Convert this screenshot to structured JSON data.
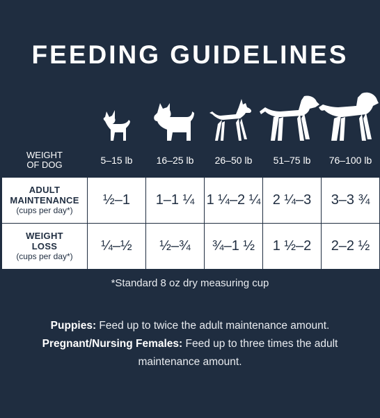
{
  "title": "FEEDING GUIDELINES",
  "dog_icons": [
    "chihuahua-icon",
    "terrier-icon",
    "doberman-icon",
    "labrador-icon",
    "golden-retriever-icon"
  ],
  "table": {
    "header_label_line1": "WEIGHT",
    "header_label_line2": "OF DOG",
    "weights": [
      "5–15 lb",
      "16–25 lb",
      "26–50 lb",
      "51–75 lb",
      "76–100 lb"
    ],
    "rows": [
      {
        "label_line1": "ADULT",
        "label_line2": "MAINTENANCE",
        "sub": "(cups per day*)",
        "values": [
          "½–1",
          "1–1 ¼",
          "1 ¼–2 ¼",
          "2 ¼–3",
          "3–3 ¾"
        ]
      },
      {
        "label_line1": "WEIGHT",
        "label_line2": "LOSS",
        "sub": "(cups per day*)",
        "values": [
          "¼–½",
          "½–¾",
          "¾–1 ½",
          "1 ½–2",
          "2–2 ½"
        ]
      }
    ]
  },
  "footnote": "*Standard 8 oz dry measuring cup",
  "puppies": {
    "label": "Puppies:",
    "text": " Feed up to twice the adult maintenance amount."
  },
  "pregnant": {
    "label": "Pregnant/Nursing Females:",
    "text": " Feed up to three times the adult maintenance amount."
  },
  "colors": {
    "background": "#1f2d40",
    "cell": "#ffffff",
    "text_dark": "#1f2d40"
  }
}
